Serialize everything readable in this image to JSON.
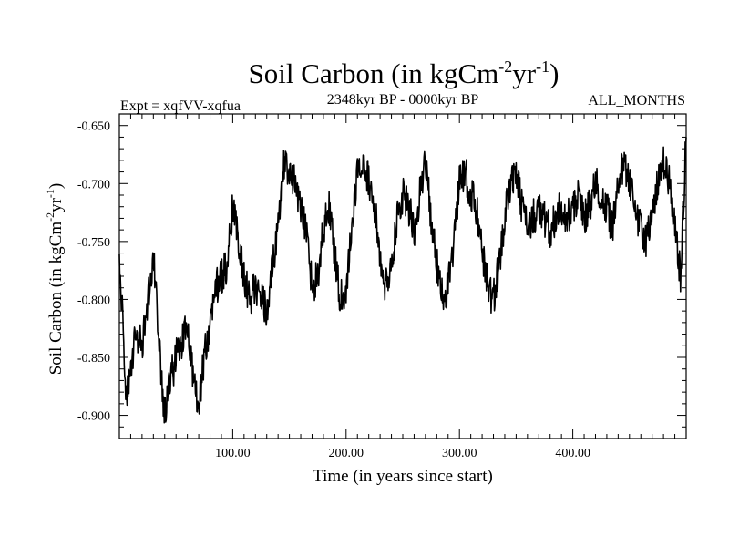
{
  "chart_data": {
    "type": "line",
    "title": {
      "base": "Soil Carbon (in kgCm",
      "exp1": "-2",
      "mid": "yr",
      "exp2": "-1",
      "end": ")"
    },
    "subtitle_left": "Expt = xqfVV-xqfua",
    "subtitle_center": "2348kyr BP - 0000kyr BP",
    "subtitle_right": "ALL_MONTHS",
    "xlabel": "Time (in years since start)",
    "ylabel": {
      "base": "Soil Carbon (in kgCm",
      "exp1": "-2",
      "mid": "yr",
      "exp2": "-1",
      "end": ")"
    },
    "xlim": [
      0,
      500
    ],
    "ylim": [
      -0.92,
      -0.64
    ],
    "x_ticks": [
      {
        "value": 100,
        "label": "100.00"
      },
      {
        "value": 200,
        "label": "200.00"
      },
      {
        "value": 300,
        "label": "300.00"
      },
      {
        "value": 400,
        "label": "400.00"
      }
    ],
    "y_ticks": [
      {
        "value": -0.65,
        "label": "-0.650"
      },
      {
        "value": -0.7,
        "label": "-0.700"
      },
      {
        "value": -0.75,
        "label": "-0.750"
      },
      {
        "value": -0.8,
        "label": "-0.800"
      },
      {
        "value": -0.85,
        "label": "-0.850"
      },
      {
        "value": -0.9,
        "label": "-0.900"
      }
    ],
    "series": [
      {
        "name": "Soil Carbon",
        "color": "#000000",
        "x": [
          0,
          3,
          6,
          10,
          15,
          20,
          25,
          30,
          35,
          40,
          45,
          50,
          55,
          60,
          65,
          70,
          75,
          80,
          85,
          90,
          95,
          100,
          105,
          110,
          115,
          120,
          125,
          130,
          135,
          140,
          145,
          150,
          155,
          160,
          165,
          170,
          175,
          180,
          185,
          190,
          195,
          200,
          205,
          210,
          215,
          220,
          225,
          230,
          235,
          240,
          245,
          250,
          255,
          260,
          265,
          270,
          275,
          280,
          285,
          290,
          295,
          300,
          305,
          310,
          315,
          320,
          325,
          330,
          335,
          340,
          345,
          350,
          355,
          360,
          365,
          370,
          375,
          380,
          385,
          390,
          395,
          400,
          405,
          410,
          415,
          420,
          425,
          430,
          435,
          440,
          445,
          450,
          455,
          460,
          465,
          470,
          475,
          480,
          485,
          490,
          495,
          500
        ],
        "y": [
          -0.77,
          -0.82,
          -0.88,
          -0.86,
          -0.83,
          -0.84,
          -0.8,
          -0.76,
          -0.84,
          -0.9,
          -0.87,
          -0.85,
          -0.84,
          -0.82,
          -0.87,
          -0.89,
          -0.85,
          -0.82,
          -0.79,
          -0.78,
          -0.77,
          -0.72,
          -0.75,
          -0.78,
          -0.8,
          -0.79,
          -0.8,
          -0.81,
          -0.77,
          -0.74,
          -0.68,
          -0.69,
          -0.7,
          -0.72,
          -0.74,
          -0.79,
          -0.78,
          -0.74,
          -0.72,
          -0.76,
          -0.8,
          -0.79,
          -0.74,
          -0.69,
          -0.68,
          -0.7,
          -0.72,
          -0.76,
          -0.79,
          -0.77,
          -0.73,
          -0.71,
          -0.72,
          -0.74,
          -0.71,
          -0.68,
          -0.73,
          -0.77,
          -0.8,
          -0.79,
          -0.75,
          -0.7,
          -0.69,
          -0.71,
          -0.72,
          -0.76,
          -0.79,
          -0.8,
          -0.77,
          -0.73,
          -0.7,
          -0.69,
          -0.72,
          -0.74,
          -0.73,
          -0.72,
          -0.73,
          -0.74,
          -0.73,
          -0.72,
          -0.73,
          -0.72,
          -0.71,
          -0.73,
          -0.72,
          -0.7,
          -0.71,
          -0.72,
          -0.74,
          -0.7,
          -0.68,
          -0.7,
          -0.72,
          -0.74,
          -0.75,
          -0.73,
          -0.7,
          -0.68,
          -0.7,
          -0.74,
          -0.78,
          -0.66
        ]
      }
    ]
  }
}
